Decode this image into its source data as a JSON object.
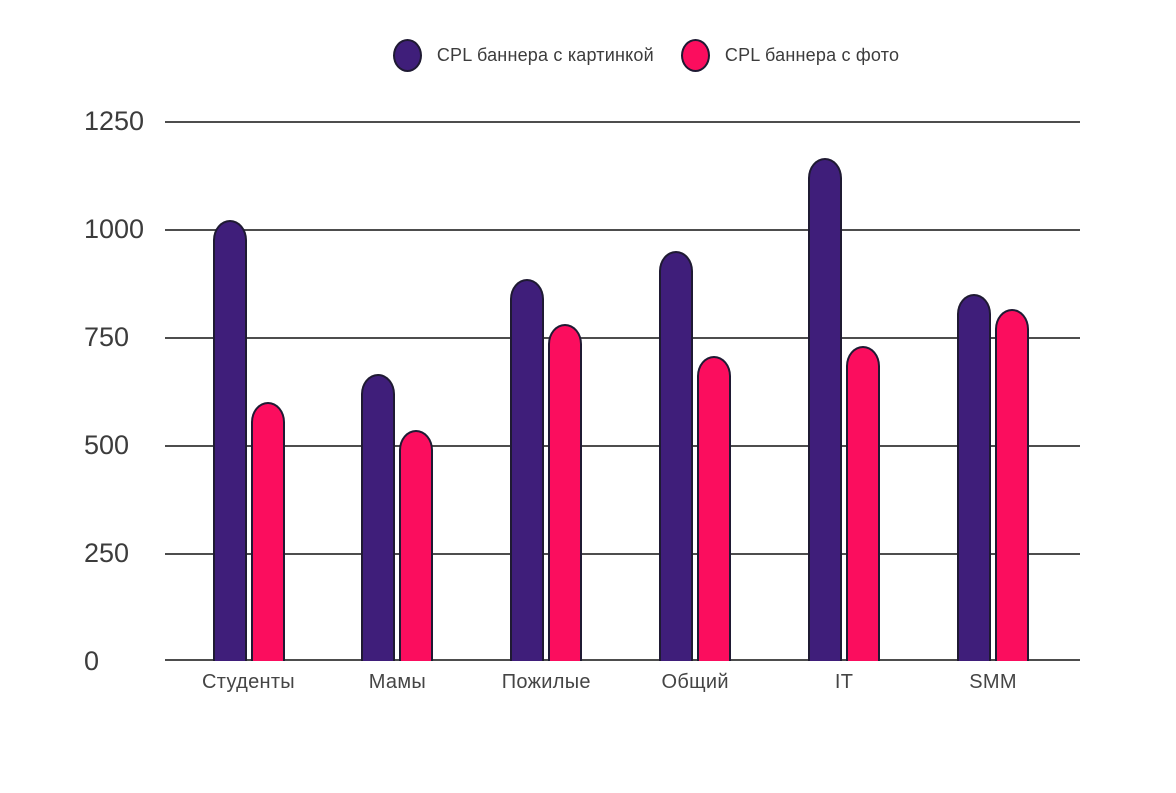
{
  "chart_data": {
    "type": "bar",
    "title": "",
    "categories": [
      "Студенты",
      "Мамы",
      "Пожилые",
      "Общий",
      "IT",
      "SMM"
    ],
    "series": [
      {
        "name": "CPL баннера с картинкой",
        "color": "#3F1E7A",
        "values": [
          1020,
          665,
          885,
          950,
          1165,
          850
        ]
      },
      {
        "name": "CPL баннера с фото",
        "color": "#FB0D5E",
        "values": [
          600,
          535,
          780,
          705,
          730,
          815
        ]
      }
    ],
    "xlabel": "",
    "ylabel": "",
    "ylim": [
      0,
      1250
    ],
    "y_ticks": [
      0,
      250,
      500,
      750,
      1000,
      1250
    ],
    "grid": "horizontal",
    "legend_position": "top-center",
    "colors": {
      "bar_outline": "#1F1A33",
      "gridline": "#4D4D4D",
      "axis_text": "#3C3C3C",
      "background": "#FFFFFF"
    }
  }
}
